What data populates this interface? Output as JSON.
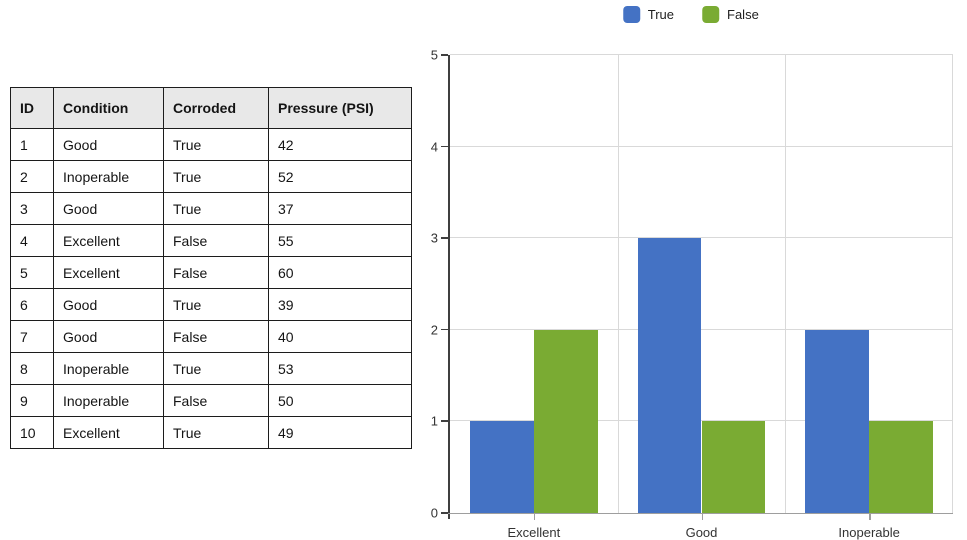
{
  "table": {
    "headers": [
      "ID",
      "Condition",
      "Corroded",
      "Pressure (PSI)"
    ],
    "rows": [
      [
        "1",
        "Good",
        "True",
        "42"
      ],
      [
        "2",
        "Inoperable",
        "True",
        "52"
      ],
      [
        "3",
        "Good",
        "True",
        "37"
      ],
      [
        "4",
        "Excellent",
        "False",
        "55"
      ],
      [
        "5",
        "Excellent",
        "False",
        "60"
      ],
      [
        "6",
        "Good",
        "True",
        "39"
      ],
      [
        "7",
        "Good",
        "False",
        "40"
      ],
      [
        "8",
        "Inoperable",
        "True",
        "53"
      ],
      [
        "9",
        "Inoperable",
        "False",
        "50"
      ],
      [
        "10",
        "Excellent",
        "True",
        "49"
      ]
    ]
  },
  "chart_data": {
    "type": "bar",
    "title": "",
    "xlabel": "",
    "ylabel": "",
    "categories": [
      "Excellent",
      "Good",
      "Inoperable"
    ],
    "series": [
      {
        "name": "True",
        "color": "#4472c4",
        "values": [
          1,
          3,
          2
        ]
      },
      {
        "name": "False",
        "color": "#7aab33",
        "values": [
          2,
          1,
          1
        ]
      }
    ],
    "ylim": [
      0,
      5
    ],
    "yticks": [
      0,
      1,
      2,
      3,
      4,
      5
    ],
    "grid": true,
    "legend_position": "top"
  }
}
